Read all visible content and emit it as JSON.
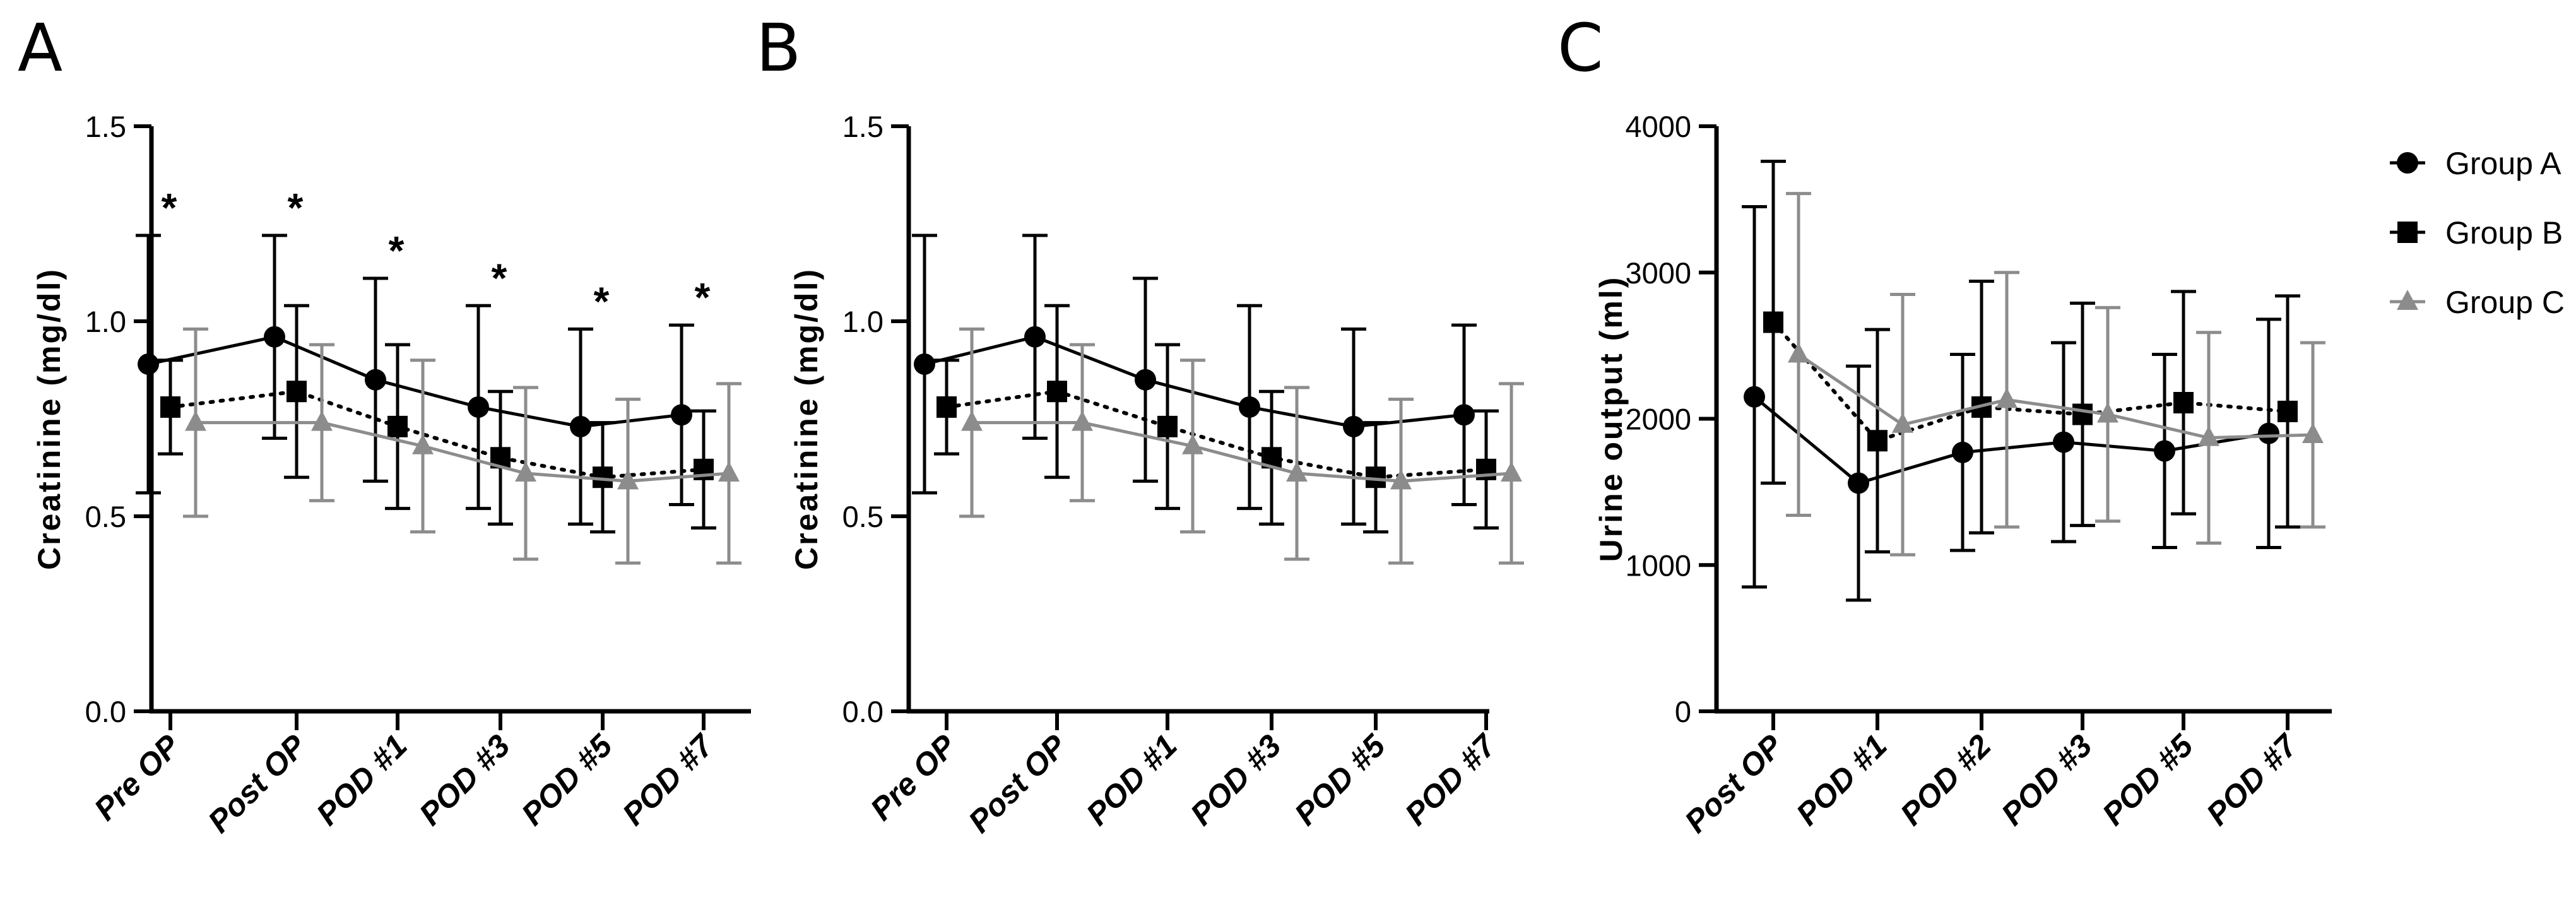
{
  "chart_data": [
    {
      "panel": "A",
      "type": "line",
      "ylabel": "Creatinine (mg/dl)",
      "xlabel": "",
      "ylim": [
        0,
        1.5
      ],
      "yticks": [
        "0.0",
        "0.5",
        "1.0",
        "1.5"
      ],
      "categories": [
        "Pre OP",
        "Post OP",
        "POD #1",
        "POD #3",
        "POD #5",
        "POD #7"
      ],
      "significance": [
        "*",
        "*",
        "*",
        "*",
        "*",
        "*"
      ],
      "series": [
        {
          "name": "Group A",
          "values": [
            0.89,
            0.96,
            0.85,
            0.78,
            0.73,
            0.76
          ],
          "err": [
            0.33,
            0.26,
            0.26,
            0.26,
            0.25,
            0.23
          ]
        },
        {
          "name": "Group B",
          "values": [
            0.78,
            0.82,
            0.73,
            0.65,
            0.6,
            0.62
          ],
          "err": [
            0.12,
            0.22,
            0.21,
            0.17,
            0.14,
            0.15
          ]
        },
        {
          "name": "Group C",
          "values": [
            0.74,
            0.74,
            0.68,
            0.61,
            0.59,
            0.61
          ],
          "err": [
            0.24,
            0.2,
            0.22,
            0.22,
            0.21,
            0.23
          ]
        }
      ]
    },
    {
      "panel": "B",
      "type": "line",
      "ylabel": "Creatinine (mg/dl)",
      "xlabel": "",
      "ylim": [
        0,
        1.5
      ],
      "yticks": [
        "0.0",
        "0.5",
        "1.0",
        "1.5"
      ],
      "categories": [
        "Pre OP",
        "Post OP",
        "POD #1",
        "POD #3",
        "POD #5",
        "POD #7"
      ],
      "significance": [],
      "series": [
        {
          "name": "Group A",
          "values": [
            0.89,
            0.96,
            0.85,
            0.78,
            0.73,
            0.76
          ],
          "err": [
            0.33,
            0.26,
            0.26,
            0.26,
            0.25,
            0.23
          ]
        },
        {
          "name": "Group B",
          "values": [
            0.78,
            0.82,
            0.73,
            0.65,
            0.6,
            0.62
          ],
          "err": [
            0.12,
            0.22,
            0.21,
            0.17,
            0.14,
            0.15
          ]
        },
        {
          "name": "Group C",
          "values": [
            0.74,
            0.74,
            0.68,
            0.61,
            0.59,
            0.61
          ],
          "err": [
            0.24,
            0.2,
            0.22,
            0.22,
            0.21,
            0.23
          ]
        }
      ]
    },
    {
      "panel": "C",
      "type": "line",
      "ylabel": "Urine output (ml)",
      "xlabel": "",
      "ylim": [
        0,
        4000
      ],
      "yticks": [
        "0",
        "1000",
        "2000",
        "3000",
        "4000"
      ],
      "categories": [
        "Post OP",
        "POD #1",
        "POD #2",
        "POD #3",
        "POD #5",
        "POD #7"
      ],
      "significance": [],
      "series": [
        {
          "name": "Group A",
          "values": [
            2150,
            1560,
            1770,
            1840,
            1780,
            1900
          ],
          "err": [
            1300,
            800,
            670,
            680,
            660,
            780
          ]
        },
        {
          "name": "Group B",
          "values": [
            2660,
            1850,
            2080,
            2030,
            2110,
            2050
          ],
          "err": [
            1100,
            760,
            860,
            760,
            760,
            790
          ]
        },
        {
          "name": "Group C",
          "values": [
            2440,
            1960,
            2130,
            2030,
            1870,
            1890
          ],
          "err": [
            1100,
            890,
            870,
            730,
            720,
            630
          ]
        }
      ]
    }
  ],
  "legend": [
    {
      "name": "Group A",
      "marker": "circle",
      "color": "#000000",
      "line": "solid"
    },
    {
      "name": "Group B",
      "marker": "square",
      "color": "#000000",
      "line": "dotted"
    },
    {
      "name": "Group C",
      "marker": "triangle",
      "color": "#8c8c8c",
      "line": "solid"
    }
  ],
  "colors": {
    "dark": "#000000",
    "gray": "#8c8c8c"
  }
}
